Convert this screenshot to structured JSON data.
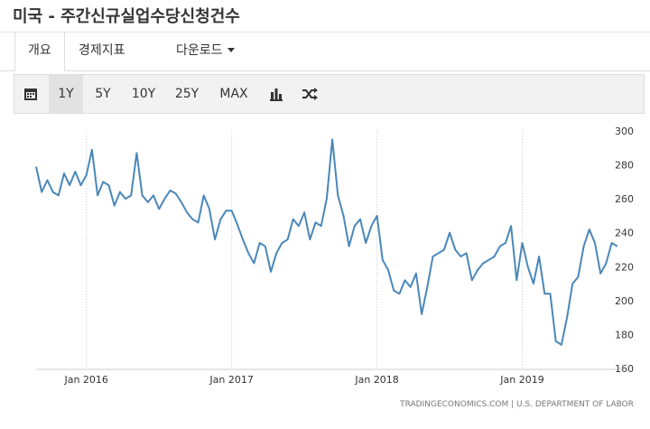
{
  "header": {
    "title": "미국 - 주간신규실업수당신청건수"
  },
  "tabs": [
    "개요",
    "경제지표",
    "다운로드"
  ],
  "toolbar": [
    "1Y",
    "5Y",
    "10Y",
    "25Y",
    "MAX"
  ],
  "source": "TRADINGECONOMICS.COM  |  U.S. DEPARTMENT OF LABOR",
  "chart_data": {
    "type": "line",
    "color": "#4a87b9",
    "categories": [
      null,
      null,
      null,
      null,
      null,
      null,
      null,
      null,
      null,
      "Jan 2016",
      null,
      null,
      null,
      null,
      null,
      null,
      null,
      null,
      null,
      null,
      null,
      null,
      null,
      null,
      null,
      null,
      null,
      null,
      null,
      null,
      null,
      null,
      null,
      null,
      null,
      "Jan 2017",
      null,
      null,
      null,
      null,
      null,
      null,
      null,
      null,
      null,
      null,
      null,
      null,
      null,
      null,
      null,
      null,
      null,
      null,
      null,
      null,
      null,
      null,
      null,
      null,
      null,
      "Jan 2018",
      null,
      null,
      null,
      null,
      null,
      null,
      null,
      null,
      null,
      null,
      null,
      null,
      null,
      null,
      null,
      null,
      null,
      null,
      null,
      null,
      null,
      null,
      null,
      null,
      null,
      "Jan 2019",
      null,
      null,
      null,
      null,
      null,
      null,
      null,
      null,
      null,
      null,
      null,
      null,
      null,
      null,
      null,
      null,
      null
    ],
    "values": [
      279,
      264,
      271,
      264,
      262,
      275,
      268,
      276,
      268,
      274,
      289,
      262,
      270,
      268,
      256,
      264,
      260,
      262,
      287,
      262,
      258,
      262,
      254,
      260,
      265,
      263,
      258,
      252,
      248,
      246,
      262,
      254,
      236,
      248,
      253,
      253,
      245,
      236,
      228,
      222,
      234,
      232,
      217,
      228,
      234,
      236,
      248,
      244,
      252,
      236,
      246,
      244,
      260,
      295,
      262,
      250,
      232,
      244,
      248,
      234,
      244,
      250,
      224,
      218,
      206,
      204,
      212,
      208,
      216,
      192,
      208,
      226,
      228,
      230,
      240,
      230,
      226,
      228,
      212,
      218,
      222,
      224,
      226,
      232,
      234,
      244,
      212,
      234,
      220,
      210,
      226,
      204,
      204,
      176,
      174,
      190,
      210,
      214,
      232,
      242,
      234,
      216,
      222,
      234,
      232
    ],
    "ylim": [
      160,
      300
    ],
    "yticks": [
      160,
      180,
      200,
      220,
      240,
      260,
      280,
      300
    ],
    "grid": true
  }
}
